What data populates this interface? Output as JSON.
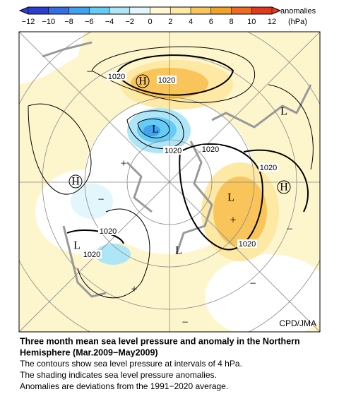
{
  "legend": {
    "tick_labels": [
      "−12",
      "−10",
      "−8",
      "−6",
      "−4",
      "−2",
      "0",
      "2",
      "4",
      "6",
      "8",
      "10",
      "12"
    ],
    "colors": [
      "#2b3fd4",
      "#3370e8",
      "#3fa3f0",
      "#66cbf5",
      "#aee6f7",
      "#e2f6fb",
      "#fff8d2",
      "#fde8a4",
      "#f9c55a",
      "#f4a226",
      "#ee6b1f",
      "#e3381a"
    ],
    "label": "anomalies",
    "unit": "(hPa)"
  },
  "map": {
    "high": "H",
    "low": "L",
    "isobar": "1020",
    "positive": "+",
    "negative": "−",
    "credit": "CPD/JMA"
  },
  "caption": {
    "title": [
      "Three month mean sea level pressure and anomaly in the Northern",
      "Hemisphere (Mar.2009−May2009)"
    ],
    "lines": [
      "The contours show sea level pressure at intervals of 4 hPa.",
      "The shading indicates sea level pressure anomalies.",
      "Anomalies are deviations from the 1991−2020 average."
    ]
  }
}
